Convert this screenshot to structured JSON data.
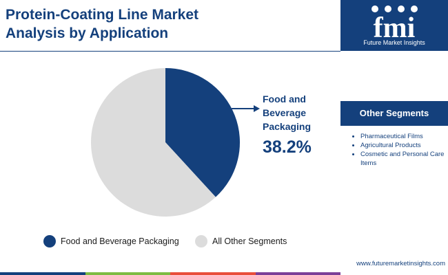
{
  "header": {
    "title_line1": "Protein-Coating Line Market",
    "title_line2": "Analysis by Application"
  },
  "logo": {
    "mark": "fmi",
    "tagline": "Future Market Insights"
  },
  "chart_data": {
    "type": "pie",
    "categories": [
      "Food and Beverage Packaging",
      "All Other Segments"
    ],
    "values": [
      38.2,
      61.8
    ],
    "colors": [
      "#14407c",
      "#dcdcdc"
    ],
    "callout": {
      "label": "Food and Beverage Packaging",
      "value": "38.2%"
    },
    "legend_position": "bottom"
  },
  "legend": {
    "items": [
      {
        "label": "Food and Beverage Packaging",
        "color": "#14407c"
      },
      {
        "label": "All Other Segments",
        "color": "#dcdcdc"
      }
    ]
  },
  "side_panel": {
    "heading": "Other Segments",
    "items": [
      "Pharmaceutical Films",
      "Agricultural Products",
      "Cosmetic and Personal Care Items"
    ],
    "website": "www.futuremarketinsights.com"
  },
  "footer_colors": [
    "#14407c",
    "#7dbb42",
    "#e94e3b",
    "#7b3f98"
  ]
}
